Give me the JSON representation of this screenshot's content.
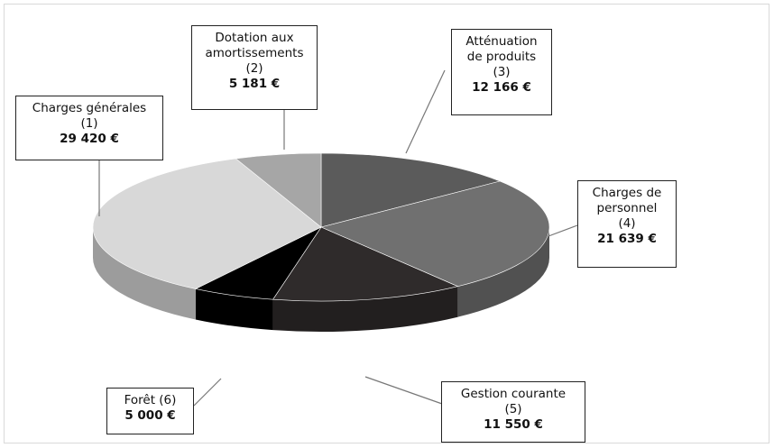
{
  "chart_data": {
    "type": "pie",
    "title": "",
    "three_d": true,
    "start_angle": "12 o'clock",
    "direction": "clockwise",
    "slices": [
      {
        "name": "Atténuation de produits",
        "number": "(3)",
        "label_value": "12 166 €",
        "value": 12166,
        "color": "#5b5b5b"
      },
      {
        "name": "Charges de personnel",
        "number": "(4)",
        "label_value": "21 639 €",
        "value": 21639,
        "color": "#707070"
      },
      {
        "name": "Gestion courante",
        "number": "(5)",
        "label_value": "11 550 €",
        "value": 11550,
        "color": "#2f2b2b"
      },
      {
        "name": "Forêt",
        "number": "(6)",
        "label_value": "5 000 €",
        "value": 5000,
        "color": "#000000"
      },
      {
        "name": "Charges générales",
        "number": "(1)",
        "label_value": "29 420 €",
        "value": 29420,
        "color": "#d8d8d8"
      },
      {
        "name": "Dotation aux amortissements",
        "number": "(2)",
        "label_value": "5 181 €",
        "value": 5181,
        "color": "#a6a6a6"
      }
    ],
    "labels": {
      "atténuation": {
        "line1": "Atténuation",
        "line2": "de produits",
        "line3": "(3)",
        "value": "12 166 €"
      },
      "personnel": {
        "line1": "Charges de",
        "line2": "personnel",
        "line3": "(4)",
        "value": "21 639 €"
      },
      "gestion": {
        "line1": "Gestion courante",
        "line2": "(5)",
        "value": "11 550 €"
      },
      "foret": {
        "line1": "Forêt (6)",
        "value": "5 000 €"
      },
      "generales": {
        "line1": "Charges générales",
        "line2": "(1)",
        "value": "29 420 €"
      },
      "dotation": {
        "line1": "Dotation aux",
        "line2": "amortissements",
        "line3": "(2)",
        "value": "5 181 €"
      }
    }
  }
}
